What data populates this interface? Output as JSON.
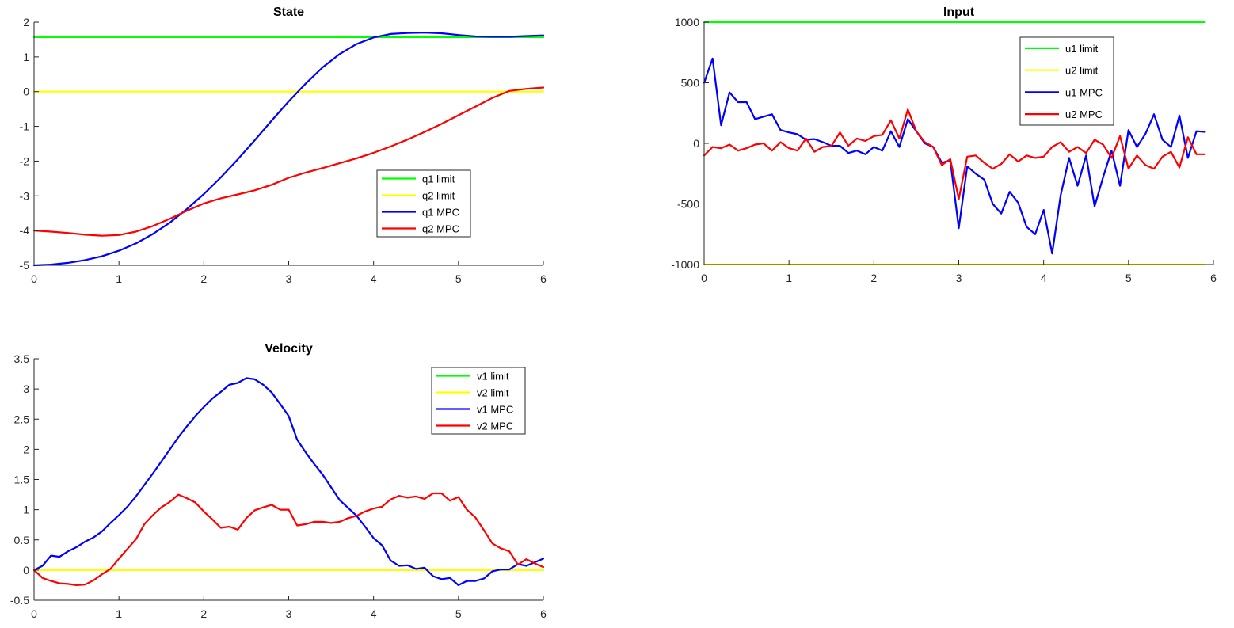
{
  "chart_data": [
    {
      "type": "line",
      "title": "State",
      "xlabel": "",
      "ylabel": "",
      "xlim": [
        0,
        6
      ],
      "ylim": [
        -5,
        2
      ],
      "xticks": [
        0,
        1,
        2,
        3,
        4,
        5,
        6
      ],
      "yticks": [
        -5,
        -4,
        -3,
        -2,
        -1,
        0,
        1,
        2
      ],
      "grid": false,
      "legend_position": "center-right",
      "series": [
        {
          "name": "q1 limit",
          "color": "#00ff00",
          "x": [
            0,
            6
          ],
          "y": [
            1.57,
            1.57
          ]
        },
        {
          "name": "q2 limit",
          "color": "#ffff00",
          "x": [
            0,
            6
          ],
          "y": [
            0,
            0
          ]
        },
        {
          "name": "q1 MPC",
          "color": "#0000ff",
          "x": [
            0,
            0.2,
            0.4,
            0.6,
            0.8,
            1.0,
            1.2,
            1.4,
            1.6,
            1.8,
            2.0,
            2.2,
            2.4,
            2.6,
            2.8,
            3.0,
            3.2,
            3.4,
            3.6,
            3.8,
            4.0,
            4.2,
            4.4,
            4.6,
            4.8,
            5.0,
            5.2,
            5.4,
            5.6,
            5.8,
            6.0
          ],
          "y": [
            -5.0,
            -4.98,
            -4.93,
            -4.85,
            -4.74,
            -4.58,
            -4.37,
            -4.1,
            -3.77,
            -3.38,
            -2.95,
            -2.47,
            -1.95,
            -1.4,
            -0.83,
            -0.28,
            0.23,
            0.7,
            1.08,
            1.37,
            1.56,
            1.66,
            1.69,
            1.7,
            1.68,
            1.63,
            1.59,
            1.58,
            1.58,
            1.6,
            1.62
          ]
        },
        {
          "name": "q2 MPC",
          "color": "#ff0000",
          "x": [
            0,
            0.2,
            0.4,
            0.6,
            0.8,
            1.0,
            1.2,
            1.4,
            1.6,
            1.8,
            2.0,
            2.2,
            2.4,
            2.6,
            2.8,
            3.0,
            3.2,
            3.4,
            3.6,
            3.8,
            4.0,
            4.2,
            4.4,
            4.6,
            4.8,
            5.0,
            5.2,
            5.4,
            5.6,
            5.8,
            6.0
          ],
          "y": [
            -4.0,
            -4.03,
            -4.07,
            -4.12,
            -4.15,
            -4.13,
            -4.03,
            -3.87,
            -3.66,
            -3.43,
            -3.22,
            -3.07,
            -2.96,
            -2.84,
            -2.68,
            -2.48,
            -2.33,
            -2.2,
            -2.06,
            -1.92,
            -1.76,
            -1.58,
            -1.38,
            -1.16,
            -0.93,
            -0.68,
            -0.43,
            -0.18,
            0.02,
            0.08,
            0.12
          ]
        }
      ]
    },
    {
      "type": "line",
      "title": "Input",
      "xlabel": "",
      "ylabel": "",
      "xlim": [
        0,
        6
      ],
      "ylim": [
        -1000,
        1000
      ],
      "xticks": [
        0,
        1,
        2,
        3,
        4,
        5,
        6
      ],
      "yticks": [
        -1000,
        -500,
        0,
        500,
        1000
      ],
      "grid": false,
      "legend_position": "top-right",
      "series": [
        {
          "name": "u1 limit",
          "color": "#00ff00",
          "x": [
            0,
            5.9
          ],
          "y": [
            1000,
            1000
          ]
        },
        {
          "name": "u2 limit",
          "color": "#ffff00",
          "x": [
            0,
            5.9
          ],
          "y": [
            -1000,
            -1000
          ]
        },
        {
          "name": "u1 MPC",
          "color": "#0000ff",
          "x": [
            0,
            0.1,
            0.2,
            0.3,
            0.4,
            0.5,
            0.6,
            0.7,
            0.8,
            0.9,
            1.0,
            1.1,
            1.2,
            1.3,
            1.4,
            1.5,
            1.6,
            1.7,
            1.8,
            1.9,
            2.0,
            2.1,
            2.2,
            2.3,
            2.4,
            2.5,
            2.6,
            2.7,
            2.8,
            2.9,
            3.0,
            3.1,
            3.2,
            3.3,
            3.4,
            3.5,
            3.6,
            3.7,
            3.8,
            3.9,
            4.0,
            4.1,
            4.2,
            4.3,
            4.4,
            4.5,
            4.6,
            4.7,
            4.8,
            4.9,
            5.0,
            5.1,
            5.2,
            5.3,
            5.4,
            5.5,
            5.6,
            5.7,
            5.8,
            5.9
          ],
          "y": [
            500,
            700,
            150,
            420,
            340,
            340,
            200,
            220,
            240,
            110,
            90,
            75,
            30,
            35,
            10,
            -20,
            -20,
            -80,
            -60,
            -90,
            -30,
            -60,
            100,
            -30,
            200,
            100,
            0,
            -30,
            -160,
            -140,
            -700,
            -190,
            -250,
            -300,
            -500,
            -580,
            -400,
            -490,
            -690,
            -750,
            -550,
            -910,
            -430,
            -120,
            -350,
            -100,
            -520,
            -280,
            -60,
            -350,
            110,
            -30,
            80,
            240,
            30,
            -30,
            230,
            -120,
            100,
            95
          ]
        },
        {
          "name": "u2 MPC",
          "color": "#ff0000",
          "x": [
            0,
            0.1,
            0.2,
            0.3,
            0.4,
            0.5,
            0.6,
            0.7,
            0.8,
            0.9,
            1.0,
            1.1,
            1.2,
            1.3,
            1.4,
            1.5,
            1.6,
            1.7,
            1.8,
            1.9,
            2.0,
            2.1,
            2.2,
            2.3,
            2.4,
            2.5,
            2.6,
            2.7,
            2.8,
            2.9,
            3.0,
            3.1,
            3.2,
            3.3,
            3.4,
            3.5,
            3.6,
            3.7,
            3.8,
            3.9,
            4.0,
            4.1,
            4.2,
            4.3,
            4.4,
            4.5,
            4.6,
            4.7,
            4.8,
            4.9,
            5.0,
            5.1,
            5.2,
            5.3,
            5.4,
            5.5,
            5.6,
            5.7,
            5.8,
            5.9
          ],
          "y": [
            -100,
            -30,
            -40,
            -10,
            -60,
            -40,
            -10,
            0,
            -60,
            10,
            -40,
            -60,
            40,
            -70,
            -30,
            -20,
            90,
            -20,
            40,
            20,
            60,
            70,
            190,
            40,
            280,
            100,
            10,
            -30,
            -180,
            -130,
            -460,
            -110,
            -100,
            -160,
            -210,
            -170,
            -90,
            -150,
            -100,
            -120,
            -110,
            -30,
            10,
            -70,
            -30,
            -80,
            30,
            -10,
            -120,
            60,
            -210,
            -100,
            -180,
            -210,
            -110,
            -70,
            -200,
            50,
            -90,
            -90
          ]
        }
      ]
    },
    {
      "type": "line",
      "title": "Velocity",
      "xlabel": "",
      "ylabel": "",
      "xlim": [
        0,
        6
      ],
      "ylim": [
        -0.5,
        3.5
      ],
      "xticks": [
        0,
        1,
        2,
        3,
        4,
        5,
        6
      ],
      "yticks": [
        -0.5,
        0,
        0.5,
        1,
        1.5,
        2,
        2.5,
        3,
        3.5
      ],
      "grid": false,
      "legend_position": "top-right",
      "series": [
        {
          "name": "v1 limit",
          "color": "#00ff00",
          "x": [],
          "y": []
        },
        {
          "name": "v2 limit",
          "color": "#ffff00",
          "x": [
            0,
            6
          ],
          "y": [
            0,
            0
          ]
        },
        {
          "name": "v1 MPC",
          "color": "#0000ff",
          "x": [
            0,
            0.1,
            0.2,
            0.3,
            0.4,
            0.5,
            0.6,
            0.7,
            0.8,
            0.9,
            1.0,
            1.1,
            1.2,
            1.3,
            1.4,
            1.5,
            1.6,
            1.7,
            1.8,
            1.9,
            2.0,
            2.1,
            2.2,
            2.3,
            2.4,
            2.5,
            2.6,
            2.7,
            2.8,
            2.9,
            3.0,
            3.1,
            3.2,
            3.3,
            3.4,
            3.5,
            3.6,
            3.7,
            3.8,
            3.9,
            4.0,
            4.1,
            4.2,
            4.3,
            4.4,
            4.5,
            4.6,
            4.7,
            4.8,
            4.9,
            5.0,
            5.1,
            5.2,
            5.3,
            5.4,
            5.5,
            5.6,
            5.7,
            5.8,
            5.9,
            6.0
          ],
          "y": [
            0,
            0.07,
            0.24,
            0.22,
            0.31,
            0.38,
            0.47,
            0.54,
            0.64,
            0.78,
            0.91,
            1.05,
            1.22,
            1.41,
            1.6,
            1.8,
            2.0,
            2.2,
            2.38,
            2.55,
            2.7,
            2.84,
            2.95,
            3.07,
            3.1,
            3.18,
            3.16,
            3.07,
            2.94,
            2.75,
            2.55,
            2.16,
            1.95,
            1.76,
            1.58,
            1.37,
            1.16,
            1.03,
            0.9,
            0.72,
            0.53,
            0.41,
            0.16,
            0.07,
            0.08,
            0.02,
            0.04,
            -0.1,
            -0.15,
            -0.13,
            -0.25,
            -0.18,
            -0.18,
            -0.14,
            -0.02,
            0.01,
            0.01,
            0.1,
            0.07,
            0.13,
            0.19
          ]
        },
        {
          "name": "v2 MPC",
          "color": "#ff0000",
          "x": [
            0,
            0.1,
            0.2,
            0.3,
            0.4,
            0.5,
            0.6,
            0.7,
            0.8,
            0.9,
            1.0,
            1.1,
            1.2,
            1.3,
            1.4,
            1.5,
            1.6,
            1.7,
            1.8,
            1.9,
            2.0,
            2.1,
            2.2,
            2.3,
            2.4,
            2.5,
            2.6,
            2.7,
            2.8,
            2.9,
            3.0,
            3.1,
            3.2,
            3.3,
            3.4,
            3.5,
            3.6,
            3.7,
            3.8,
            3.9,
            4.0,
            4.1,
            4.2,
            4.3,
            4.4,
            4.5,
            4.6,
            4.7,
            4.8,
            4.9,
            5.0,
            5.1,
            5.2,
            5.3,
            5.4,
            5.5,
            5.6,
            5.7,
            5.8,
            5.9,
            6.0
          ],
          "y": [
            0,
            -0.13,
            -0.18,
            -0.22,
            -0.23,
            -0.25,
            -0.24,
            -0.17,
            -0.07,
            0.02,
            0.19,
            0.35,
            0.51,
            0.76,
            0.91,
            1.04,
            1.13,
            1.25,
            1.19,
            1.12,
            0.97,
            0.84,
            0.7,
            0.72,
            0.67,
            0.86,
            0.99,
            1.04,
            1.08,
            1.0,
            1.0,
            0.74,
            0.76,
            0.8,
            0.8,
            0.78,
            0.8,
            0.86,
            0.9,
            0.97,
            1.02,
            1.05,
            1.17,
            1.23,
            1.2,
            1.22,
            1.18,
            1.27,
            1.27,
            1.15,
            1.21,
            1.0,
            0.87,
            0.66,
            0.44,
            0.36,
            0.31,
            0.09,
            0.18,
            0.11,
            0.05
          ]
        }
      ]
    }
  ]
}
